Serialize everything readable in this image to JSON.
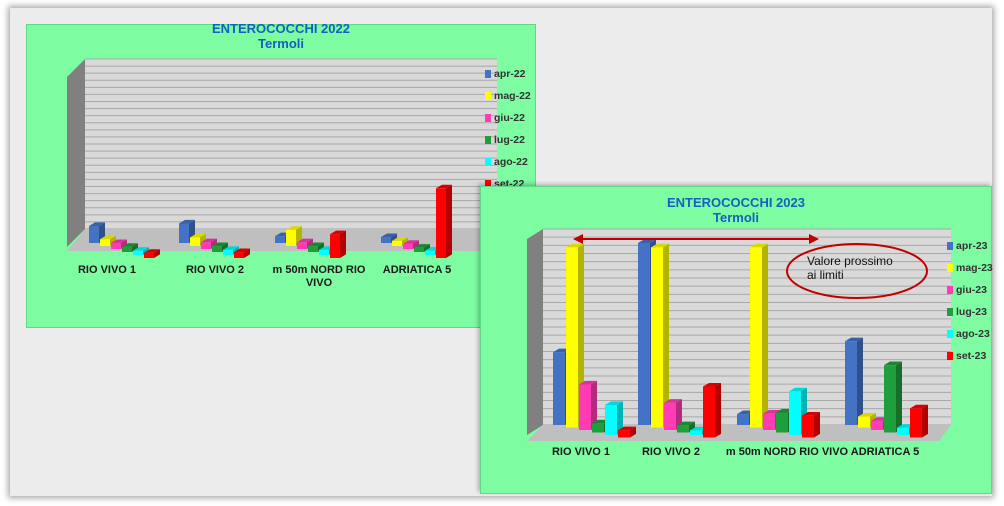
{
  "chart_data": [
    {
      "type": "bar",
      "title": "ENTEROCOCCHI 2022",
      "subtitle": "Termoli",
      "categories": [
        "RIO VIVO 1",
        "RIO VIVO 2",
        "m 50m NORD RIO VIVO",
        "ADRIATICA 5"
      ],
      "ylim": [
        0,
        1000
      ],
      "series": [
        {
          "name": "apr-22",
          "color": "#4472c4",
          "values": [
            100,
            115,
            40,
            35
          ]
        },
        {
          "name": "mag-22",
          "color": "#ffff00",
          "values": [
            40,
            50,
            95,
            30
          ]
        },
        {
          "name": "giu-22",
          "color": "#ff3cb4",
          "values": [
            35,
            40,
            40,
            30
          ]
        },
        {
          "name": "lug-22",
          "color": "#1e9e3c",
          "values": [
            30,
            35,
            35,
            25
          ]
        },
        {
          "name": "ago-22",
          "color": "#00ffff",
          "values": [
            25,
            30,
            30,
            25
          ]
        },
        {
          "name": "set-22",
          "color": "#ff0000",
          "values": [
            30,
            35,
            140,
            410
          ]
        }
      ],
      "legend_position": "right",
      "grid": true
    },
    {
      "type": "bar",
      "title": "ENTEROCOCCHI  2023",
      "subtitle": "Termoli",
      "categories": [
        "RIO VIVO 1",
        "RIO VIVO 2",
        "m 50m NORD RIO VIVO",
        "ADRIATICA 5"
      ],
      "ylim": [
        0,
        1000
      ],
      "series": [
        {
          "name": "apr-23",
          "color": "#4472c4",
          "values": [
            400,
            1000,
            60,
            460
          ]
        },
        {
          "name": "mag-23",
          "color": "#ffff00",
          "values": [
            990,
            990,
            990,
            60
          ]
        },
        {
          "name": "giu-23",
          "color": "#ff3cb4",
          "values": [
            250,
            150,
            90,
            50
          ]
        },
        {
          "name": "lug-23",
          "color": "#1e9e3c",
          "values": [
            50,
            40,
            110,
            370
          ]
        },
        {
          "name": "ago-23",
          "color": "#00ffff",
          "values": [
            165,
            25,
            240,
            40
          ]
        },
        {
          "name": "set-23",
          "color": "#ff0000",
          "values": [
            40,
            280,
            120,
            160
          ]
        }
      ],
      "legend_position": "right",
      "grid": true,
      "annotation": "Valore prossimo ai limiti"
    }
  ]
}
